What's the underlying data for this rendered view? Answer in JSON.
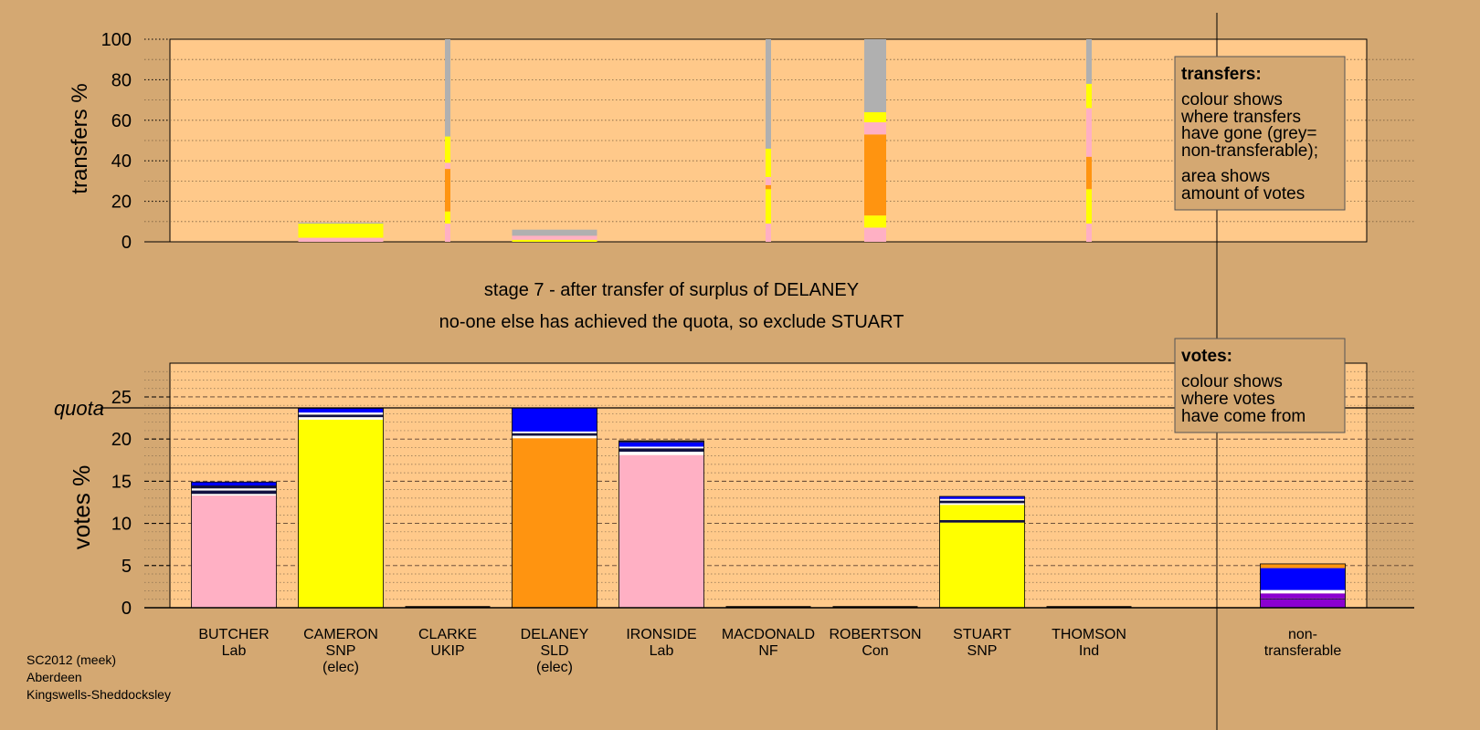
{
  "colors": {
    "background": "#d4a872",
    "plot_bg": "#ffc98a",
    "pink": "#ffb0c4",
    "yellow": "#ffff00",
    "orange": "#ff9410",
    "blue": "#0000ff",
    "purple": "#8b00d0",
    "grey": "#b0b0b0",
    "white": "#ffffff",
    "dark": "#101040"
  },
  "stage_line1": "stage 7 - after transfer of surplus of DELANEY",
  "stage_line2": "no-one else has achieved the quota, so exclude STUART",
  "footer": {
    "line1": "SC2012 (meek)",
    "line2": "Aberdeen",
    "line3": "Kingswells-Sheddocksley"
  },
  "legend_transfers": {
    "title": "transfers:",
    "lines": [
      "colour shows",
      "where transfers",
      "have gone (grey=",
      "non-transferable);"
    ],
    "lines2": [
      "area shows",
      "amount of votes"
    ]
  },
  "legend_votes": {
    "title": "votes:",
    "lines": [
      "colour shows",
      "where votes",
      "have come from"
    ]
  },
  "quota_label": "quota",
  "chart_data": [
    {
      "type": "bar",
      "name": "transfers",
      "ylabel": "transfers %",
      "ylim": [
        0,
        100
      ],
      "yticks": [
        0,
        20,
        40,
        60,
        80,
        100
      ],
      "grid": "dotted",
      "categories": [
        "CLARKE",
        "DELANEY",
        "IRONSIDE",
        "MACDONALD",
        "ROBERTSON",
        "STUART",
        "THOMSON",
        "non-transferable"
      ],
      "bars": [
        {
          "candidate": "CAMERON",
          "width": "wide",
          "segments": [
            {
              "color": "pink",
              "from": 0,
              "to": 2
            },
            {
              "color": "yellow",
              "from": 2,
              "to": 9
            },
            {
              "color": "grey",
              "from": 9,
              "to": 9.5
            }
          ]
        },
        {
          "candidate": "CLARKE",
          "width": "thin",
          "segments": [
            {
              "color": "pink",
              "from": 0,
              "to": 9
            },
            {
              "color": "yellow",
              "from": 9,
              "to": 15
            },
            {
              "color": "orange",
              "from": 15,
              "to": 36
            },
            {
              "color": "pink",
              "from": 36,
              "to": 39
            },
            {
              "color": "yellow",
              "from": 39,
              "to": 52
            },
            {
              "color": "grey",
              "from": 52,
              "to": 100
            }
          ]
        },
        {
          "candidate": "DELANEY",
          "width": "wide",
          "segments": [
            {
              "color": "yellow",
              "from": 0,
              "to": 1
            },
            {
              "color": "pink",
              "from": 1,
              "to": 3
            },
            {
              "color": "grey",
              "from": 3,
              "to": 6
            }
          ]
        },
        {
          "candidate": "MACDONALD",
          "width": "thin",
          "segments": [
            {
              "color": "pink",
              "from": 0,
              "to": 9
            },
            {
              "color": "yellow",
              "from": 9,
              "to": 26
            },
            {
              "color": "orange",
              "from": 26,
              "to": 28
            },
            {
              "color": "pink",
              "from": 28,
              "to": 32
            },
            {
              "color": "yellow",
              "from": 32,
              "to": 46
            },
            {
              "color": "grey",
              "from": 46,
              "to": 100
            }
          ]
        },
        {
          "candidate": "ROBERTSON",
          "width": "medium",
          "segments": [
            {
              "color": "pink",
              "from": 0,
              "to": 7
            },
            {
              "color": "yellow",
              "from": 7,
              "to": 13
            },
            {
              "color": "orange",
              "from": 13,
              "to": 53
            },
            {
              "color": "pink",
              "from": 53,
              "to": 59
            },
            {
              "color": "yellow",
              "from": 59,
              "to": 64
            },
            {
              "color": "grey",
              "from": 64,
              "to": 100
            }
          ]
        },
        {
          "candidate": "THOMSON",
          "width": "thin",
          "segments": [
            {
              "color": "pink",
              "from": 0,
              "to": 9
            },
            {
              "color": "yellow",
              "from": 9,
              "to": 26
            },
            {
              "color": "orange",
              "from": 26,
              "to": 42
            },
            {
              "color": "pink",
              "from": 42,
              "to": 66
            },
            {
              "color": "yellow",
              "from": 66,
              "to": 78
            },
            {
              "color": "grey",
              "from": 78,
              "to": 100
            }
          ]
        }
      ]
    },
    {
      "type": "bar",
      "name": "votes",
      "ylabel": "votes %",
      "ylim": [
        0,
        29
      ],
      "yticks": [
        0,
        5,
        10,
        15,
        20,
        25
      ],
      "quota": 23.7,
      "grid": "dashed major, dotted minor",
      "candidates": [
        {
          "name": "BUTCHER",
          "party": "Lab",
          "status": ""
        },
        {
          "name": "CAMERON",
          "party": "SNP",
          "status": "(elec)"
        },
        {
          "name": "CLARKE",
          "party": "UKIP",
          "status": ""
        },
        {
          "name": "DELANEY",
          "party": "SLD",
          "status": "(elec)"
        },
        {
          "name": "IRONSIDE",
          "party": "Lab",
          "status": ""
        },
        {
          "name": "MACDONALD",
          "party": "NF",
          "status": ""
        },
        {
          "name": "ROBERTSON",
          "party": "Con",
          "status": ""
        },
        {
          "name": "STUART",
          "party": "SNP",
          "status": ""
        },
        {
          "name": "THOMSON",
          "party": "Ind",
          "status": ""
        },
        {
          "name": "non-",
          "party": "transferable",
          "status": ""
        }
      ],
      "stacks": [
        [
          [
            "pink",
            13.3
          ],
          [
            "white",
            0.2
          ],
          [
            "dark",
            0.4
          ],
          [
            "white",
            0.25
          ],
          [
            "dark",
            0.35
          ],
          [
            "blue",
            0.4
          ]
        ],
        [
          [
            "yellow",
            22.3
          ],
          [
            "white",
            0.3
          ],
          [
            "dark",
            0.3
          ],
          [
            "white",
            0.25
          ],
          [
            "blue",
            0.5
          ]
        ],
        [
          [
            "yellow",
            0.05
          ]
        ],
        [
          [
            "orange",
            20.1
          ],
          [
            "white",
            0.3
          ],
          [
            "dark",
            0.3
          ],
          [
            "white",
            0.2
          ],
          [
            "blue",
            2.8
          ]
        ],
        [
          [
            "pink",
            18.1
          ],
          [
            "white",
            0.4
          ],
          [
            "dark",
            0.4
          ],
          [
            "white",
            0.2
          ],
          [
            "blue",
            0.5
          ],
          [
            "dark",
            0.2
          ]
        ],
        [
          [
            "pink",
            0.05
          ]
        ],
        [
          [
            "blue",
            0.05
          ]
        ],
        [
          [
            "yellow",
            10.1
          ],
          [
            "dark",
            0.3
          ],
          [
            "yellow",
            1.8
          ],
          [
            "white",
            0.2
          ],
          [
            "dark",
            0.3
          ],
          [
            "white",
            0.2
          ],
          [
            "blue",
            0.3
          ]
        ],
        [
          [
            "pink",
            0.05
          ]
        ],
        [
          [
            "purple",
            1.0
          ],
          [
            "dark",
            0.1
          ],
          [
            "purple",
            0.6
          ],
          [
            "white",
            0.4
          ],
          [
            "blue",
            2.6
          ],
          [
            "orange",
            0.5
          ]
        ]
      ]
    }
  ]
}
